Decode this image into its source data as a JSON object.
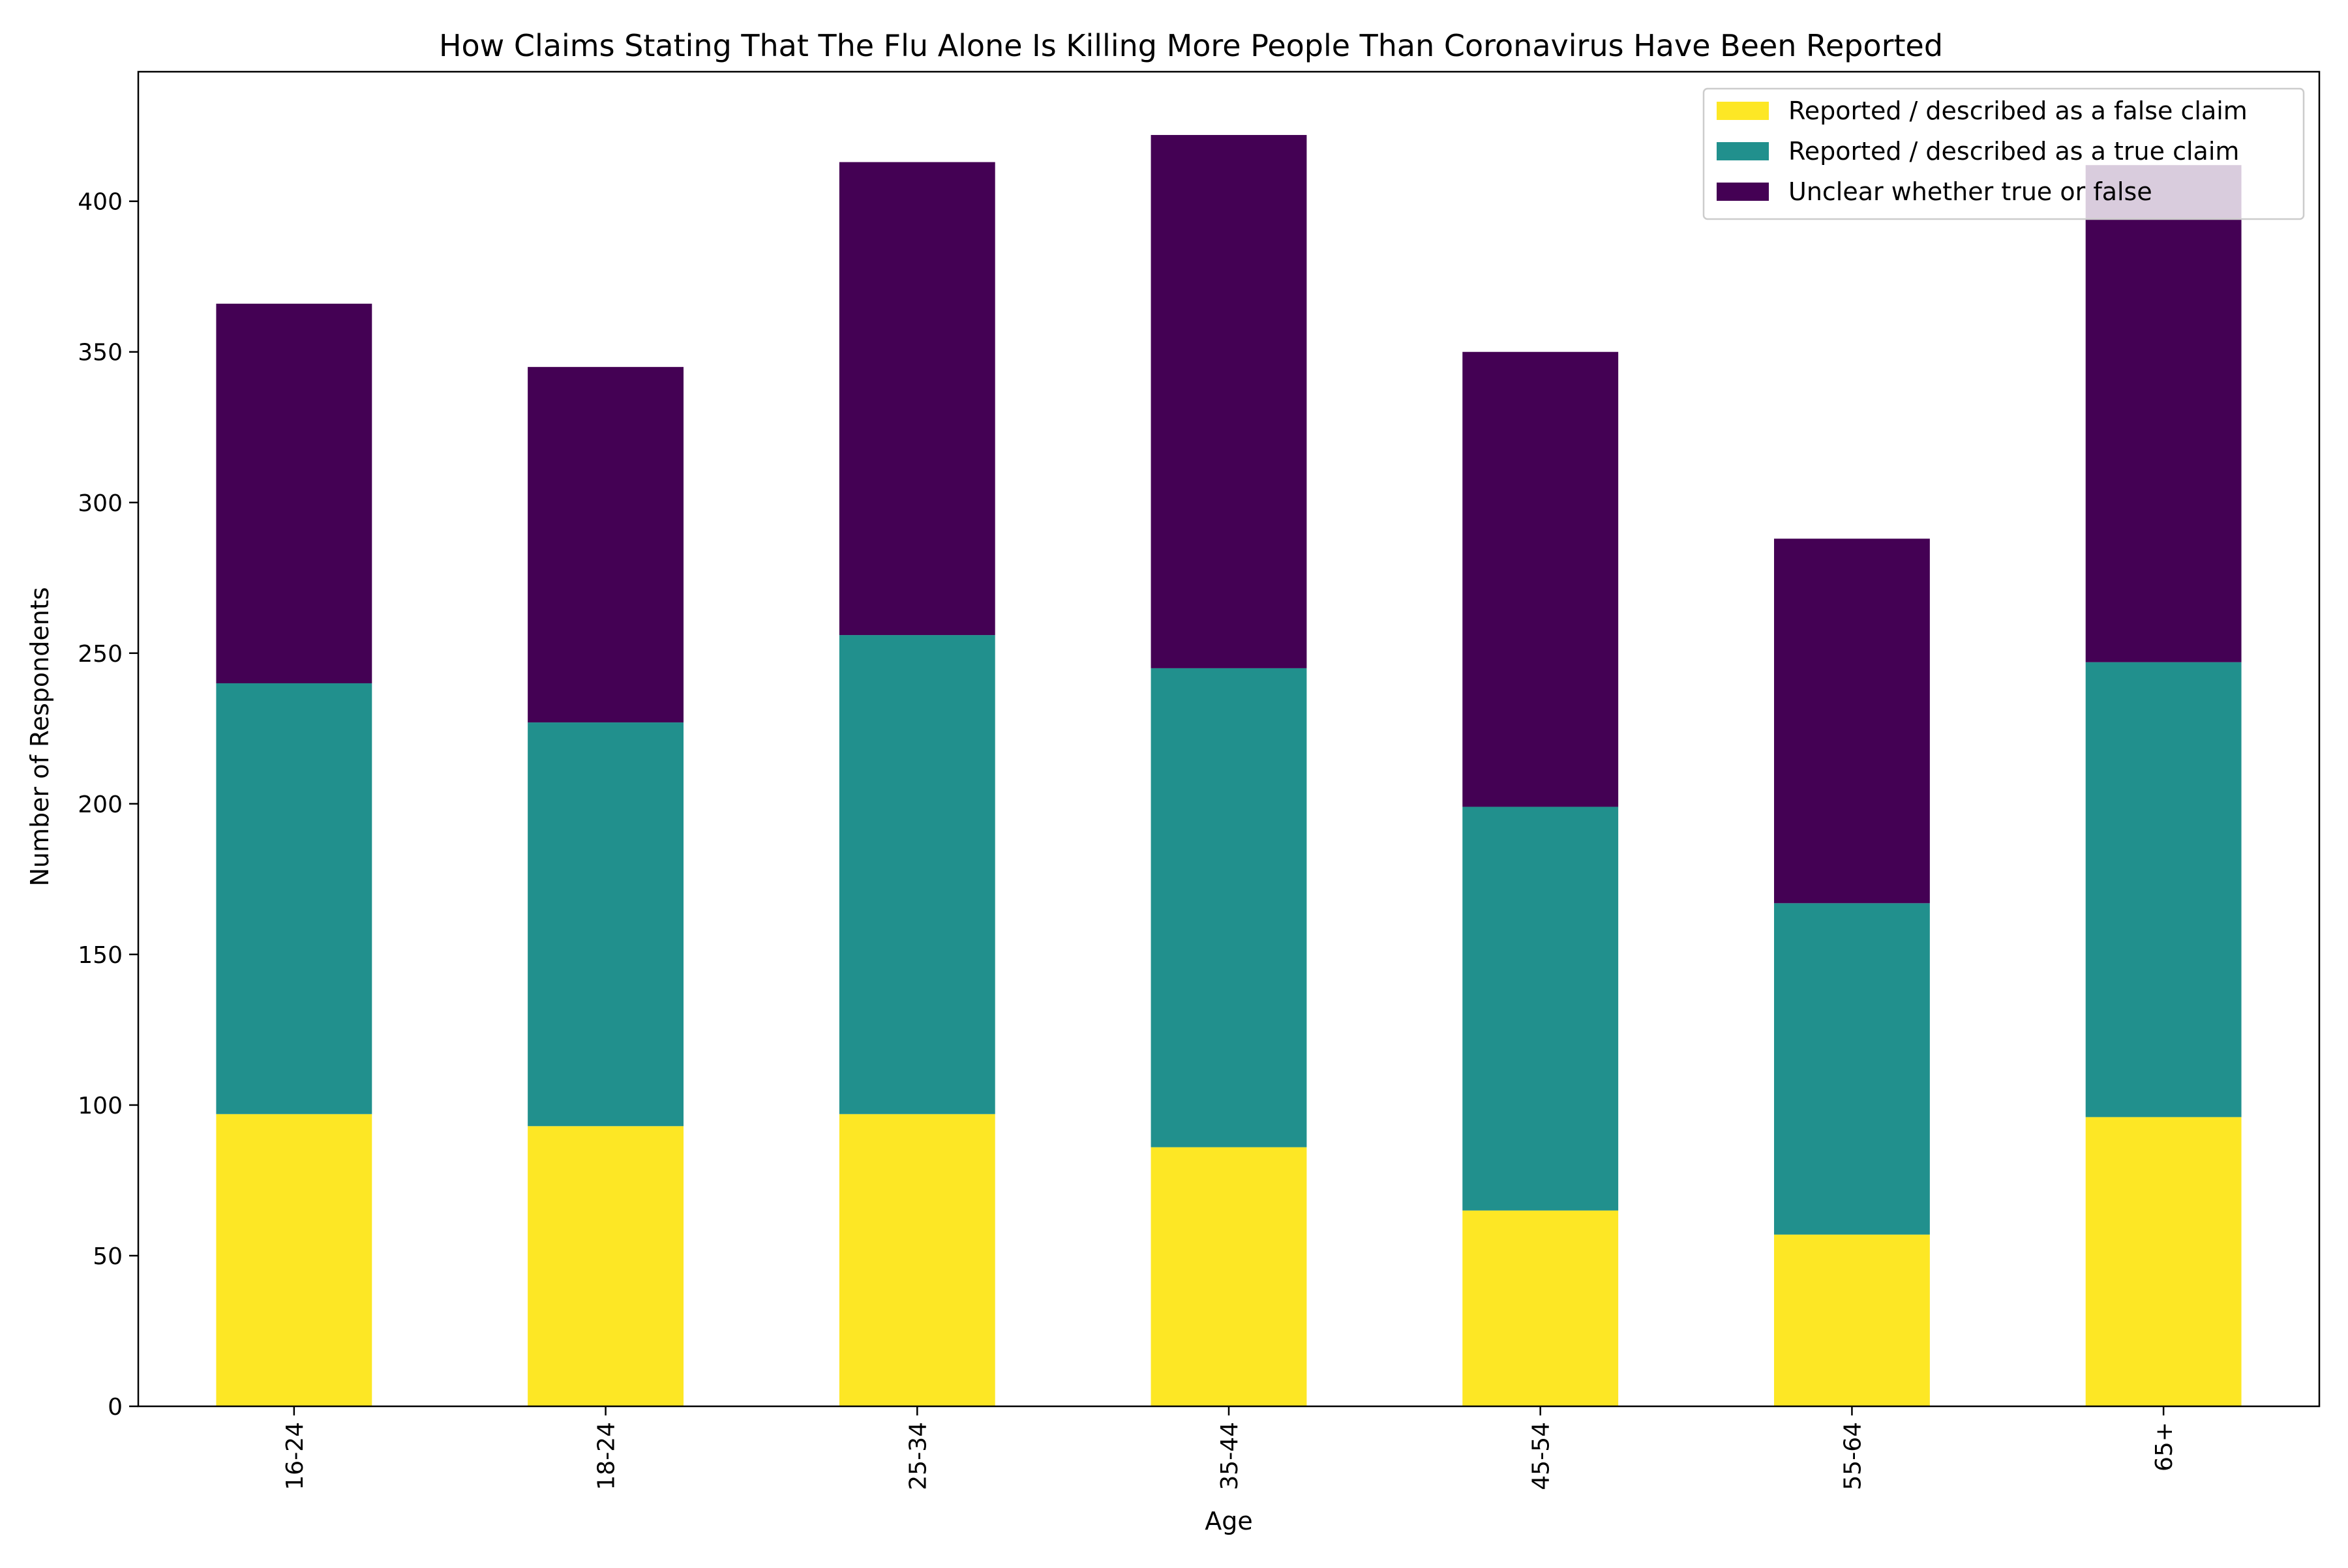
{
  "chart_data": {
    "type": "bar",
    "stacked": true,
    "title": "How Claims Stating That The Flu Alone Is Killing More People Than Coronavirus Have Been Reported",
    "xlabel": "Age",
    "ylabel": "Number of Respondents",
    "categories": [
      "16-24",
      "18-24",
      "25-34",
      "35-44",
      "45-54",
      "55-64",
      "65+"
    ],
    "ylim": [
      0,
      443
    ],
    "yticks": [
      0,
      50,
      100,
      150,
      200,
      250,
      300,
      350,
      400
    ],
    "grid": false,
    "legend_position": "top-right",
    "series": [
      {
        "name": "Reported / described as a false claim",
        "color": "#fde725",
        "values": [
          97,
          93,
          97,
          86,
          65,
          57,
          96
        ]
      },
      {
        "name": "Reported / described as a true claim",
        "color": "#21908d",
        "values": [
          143,
          134,
          159,
          159,
          134,
          110,
          151
        ]
      },
      {
        "name": "Unclear whether true or false",
        "color": "#440154",
        "values": [
          126,
          118,
          157,
          177,
          151,
          121,
          165
        ]
      }
    ]
  }
}
